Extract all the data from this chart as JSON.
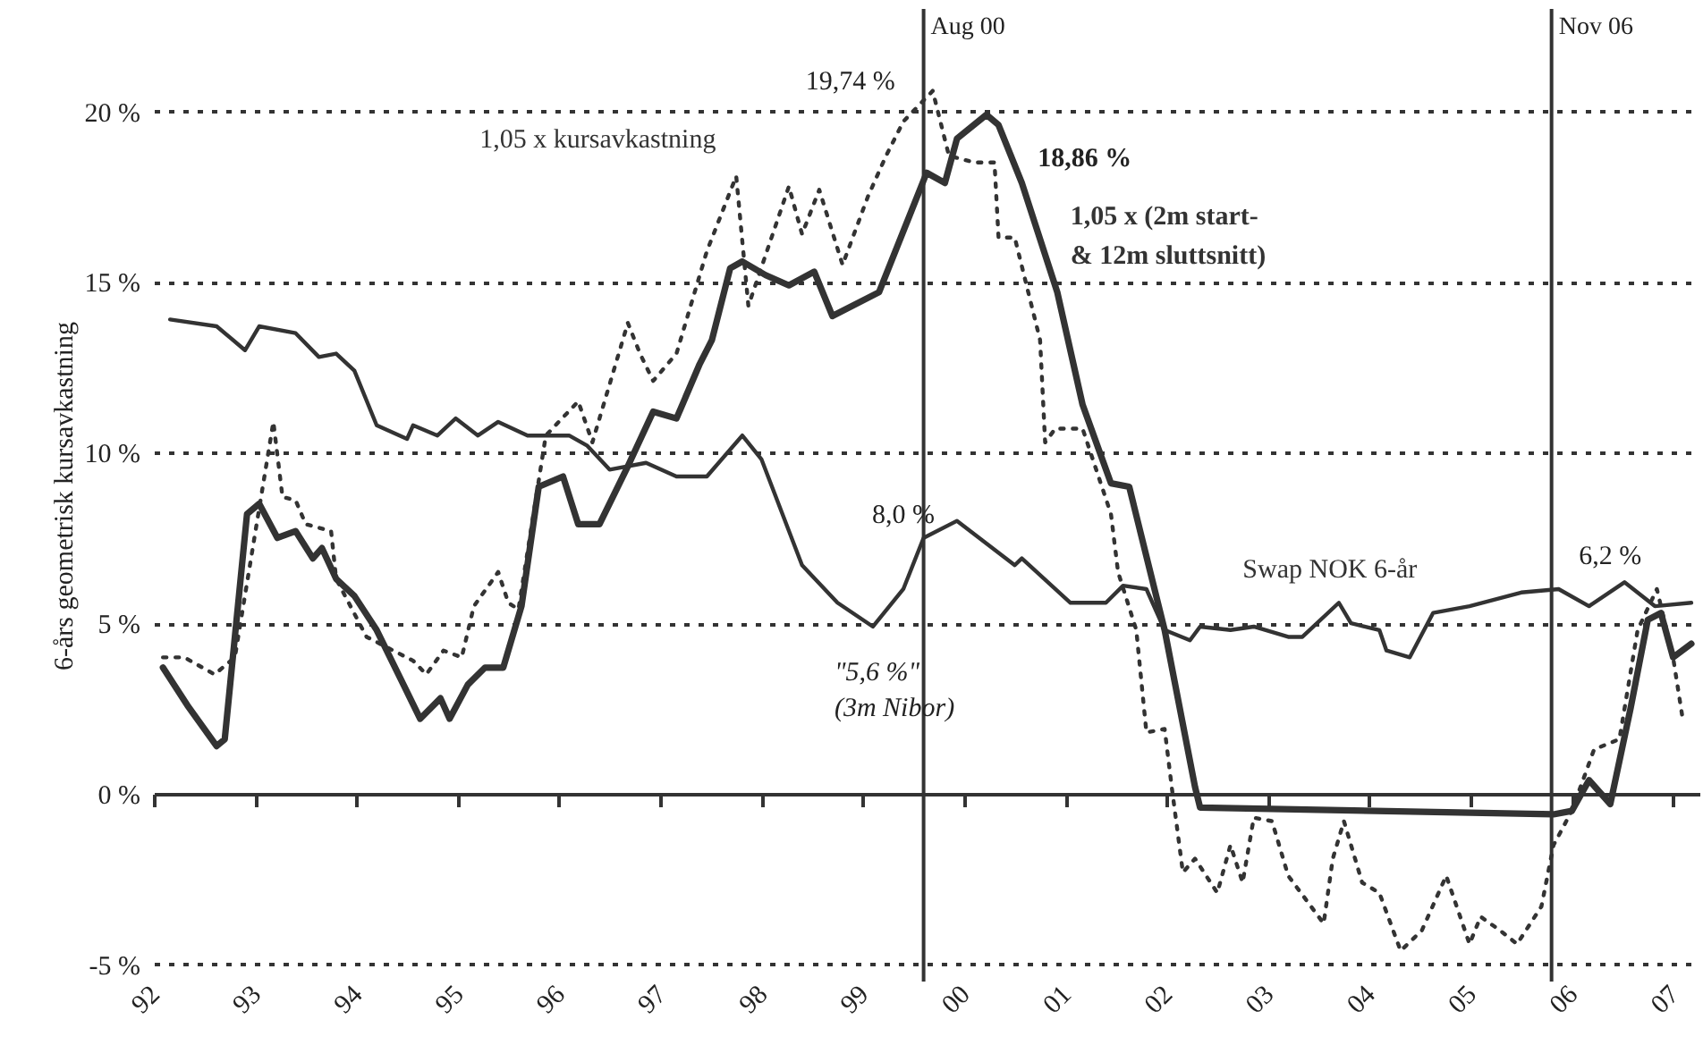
{
  "chart_data": {
    "type": "line",
    "ylabel": "6-års geometrisk kursavkastning",
    "xlim": [
      1992,
      2007.26
    ],
    "ylim": [
      -5.5,
      23
    ],
    "xticks": [
      {
        "value": 1992,
        "label": "92"
      },
      {
        "value": 1993,
        "label": "93"
      },
      {
        "value": 1994,
        "label": "94"
      },
      {
        "value": 1995,
        "label": "95"
      },
      {
        "value": 1996,
        "label": "96"
      },
      {
        "value": 1997,
        "label": "97"
      },
      {
        "value": 1998,
        "label": "98"
      },
      {
        "value": 1999,
        "label": "99"
      },
      {
        "value": 2000,
        "label": "00"
      },
      {
        "value": 2001,
        "label": "01"
      },
      {
        "value": 2002,
        "label": "02"
      },
      {
        "value": 2003,
        "label": "03"
      },
      {
        "value": 2004,
        "label": "04"
      },
      {
        "value": 2005,
        "label": "05"
      },
      {
        "value": 2006,
        "label": "06"
      },
      {
        "value": 2007,
        "label": "07"
      }
    ],
    "yticks": [
      {
        "value": -5,
        "label": "-5 %"
      },
      {
        "value": 0,
        "label": "0 %"
      },
      {
        "value": 5,
        "label": "5 %"
      },
      {
        "value": 10,
        "label": "10 %"
      },
      {
        "value": 15,
        "label": "15 %"
      },
      {
        "value": 20,
        "label": "20 %"
      }
    ],
    "grid": "y",
    "marker": "none",
    "series": [
      {
        "name": "1,05 x kursavkastning",
        "color": "#333333",
        "line_style": "dotted",
        "x": [
          1992.09,
          1992.3,
          1992.6,
          1992.8,
          1993.18,
          1993.27,
          1993.4,
          1993.5,
          1993.75,
          1993.8,
          1994.1,
          1994.56,
          1994.69,
          1994.86,
          1995.04,
          1995.16,
          1995.4,
          1995.5,
          1995.6,
          1995.87,
          1996.19,
          1996.33,
          1996.68,
          1996.8,
          1996.93,
          1997.16,
          1997.46,
          1997.75,
          1997.87,
          1998.27,
          1998.4,
          1998.57,
          1998.8,
          1999.05,
          1999.23,
          1999.4,
          1999.69,
          1999.85,
          2000.1,
          2000.3,
          2000.34,
          2000.5,
          2000.75,
          2000.8,
          2000.9,
          2001.17,
          2001.45,
          2001.52,
          2001.7,
          2001.8,
          2001.98,
          2002.05,
          2002.16,
          2002.28,
          2002.5,
          2002.63,
          2002.75,
          2002.86,
          2003.04,
          2003.2,
          2003.55,
          2003.64,
          2003.75,
          2003.93,
          2004.1,
          2004.31,
          2004.52,
          2004.76,
          2004.99,
          2005.1,
          2005.29,
          2005.46,
          2005.7,
          2005.82,
          2006.0,
          2006.22,
          2006.47,
          2006.65,
          2006.84,
          2007.0,
          2007.1
        ],
        "values": [
          4.0,
          4.0,
          3.5,
          4.0,
          10.9,
          8.7,
          8.6,
          7.9,
          7.7,
          6.3,
          4.6,
          3.9,
          3.5,
          4.2,
          4.0,
          5.5,
          6.5,
          5.6,
          5.4,
          10.5,
          11.5,
          10.3,
          13.8,
          12.9,
          12.1,
          12.9,
          15.9,
          18.1,
          14.3,
          17.8,
          16.4,
          17.7,
          15.5,
          17.5,
          18.7,
          19.7,
          20.6,
          18.7,
          18.5,
          18.5,
          16.3,
          16.3,
          13.3,
          10.3,
          10.7,
          10.7,
          8.2,
          6.5,
          4.8,
          1.8,
          1.9,
          0.2,
          -2.3,
          -1.9,
          -2.9,
          -1.5,
          -2.6,
          -0.7,
          -0.8,
          -2.4,
          -3.8,
          -1.9,
          -0.8,
          -2.6,
          -2.9,
          -4.6,
          -4.0,
          -2.4,
          -4.4,
          -3.6,
          -4.0,
          -4.4,
          -3.3,
          -1.5,
          -0.5,
          1.3,
          1.6,
          4.8,
          6.0,
          4.0,
          2.1
        ]
      },
      {
        "name": "1,05 x (2m start- & 12m sluttsnitt)",
        "color": "#333333",
        "line_style": "solid",
        "x": [
          1992.09,
          1992.33,
          1992.62,
          1992.7,
          1992.92,
          1993.04,
          1993.22,
          1993.4,
          1993.57,
          1993.66,
          1993.8,
          1993.98,
          1994.2,
          1994.63,
          1994.83,
          1994.92,
          1995.1,
          1995.27,
          1995.45,
          1995.63,
          1995.8,
          1996.04,
          1996.19,
          1996.4,
          1996.68,
          1996.93,
          1997.16,
          1997.39,
          1997.51,
          1997.69,
          1997.81,
          1998.04,
          1998.27,
          1998.52,
          1998.7,
          1999.16,
          1999.63,
          1999.81,
          1999.93,
          2000.22,
          2000.34,
          2000.57,
          2000.92,
          2001.17,
          2001.45,
          2001.63,
          2001.98,
          2002.28,
          2002.33,
          2005.82,
          2006.0,
          2006.17,
          2006.38,
          2006.58,
          2006.75,
          2006.88,
          2007.0,
          2007.18
        ],
        "values": [
          3.7,
          2.6,
          1.4,
          1.6,
          8.2,
          8.5,
          7.5,
          7.7,
          6.9,
          7.2,
          6.3,
          5.8,
          4.8,
          2.2,
          2.8,
          2.2,
          3.2,
          3.7,
          3.7,
          5.5,
          9.0,
          9.3,
          7.9,
          7.9,
          9.6,
          11.2,
          11.0,
          12.6,
          13.3,
          15.4,
          15.6,
          15.2,
          14.9,
          15.3,
          14.0,
          14.7,
          18.2,
          17.9,
          19.2,
          19.9,
          19.6,
          17.9,
          14.7,
          11.4,
          9.1,
          9.0,
          4.8,
          0.2,
          -0.4,
          -0.6,
          -0.5,
          0.4,
          -0.3,
          2.5,
          5.1,
          5.3,
          4.0,
          4.4
        ]
      },
      {
        "name": "Swap NOK 6-år",
        "color": "#333333",
        "line_style": "solid",
        "x": [
          1992.16,
          1992.62,
          1992.9,
          1993.04,
          1993.4,
          1993.63,
          1993.8,
          1993.98,
          1994.2,
          1994.5,
          1994.56,
          1994.8,
          1994.98,
          1995.2,
          1995.4,
          1995.69,
          1996.1,
          1996.28,
          1996.5,
          1996.86,
          1997.16,
          1997.46,
          1997.81,
          1998.0,
          1998.4,
          1998.75,
          1999.1,
          1999.4,
          1999.6,
          1999.93,
          2000.5,
          2000.57,
          2001.05,
          2001.4,
          2001.57,
          2001.8,
          2001.98,
          2002.23,
          2002.33,
          2002.63,
          2002.86,
          2003.2,
          2003.34,
          2003.7,
          2003.82,
          2004.1,
          2004.17,
          2004.4,
          2004.63,
          2004.99,
          2005.5,
          2005.87,
          2006.17,
          2006.52,
          2006.82,
          2007.18
        ],
        "values": [
          13.9,
          13.7,
          13.0,
          13.7,
          13.5,
          12.8,
          12.9,
          12.4,
          10.8,
          10.4,
          10.8,
          10.5,
          11.0,
          10.5,
          10.9,
          10.5,
          10.5,
          10.2,
          9.5,
          9.7,
          9.3,
          9.3,
          10.5,
          9.8,
          6.7,
          5.6,
          4.9,
          6.0,
          7.5,
          8.0,
          6.7,
          6.9,
          5.6,
          5.6,
          6.1,
          6.0,
          4.8,
          4.5,
          4.9,
          4.8,
          4.9,
          4.6,
          4.6,
          5.6,
          5.0,
          4.8,
          4.2,
          4.0,
          5.3,
          5.5,
          5.9,
          6.0,
          5.5,
          6.2,
          5.5,
          5.6
        ]
      }
    ],
    "ref_lines": [
      {
        "axis": "x",
        "value": 1999.6,
        "label": "Aug 00"
      },
      {
        "axis": "x",
        "value": 2005.8,
        "label": "Nov 06"
      }
    ],
    "annotations": [
      {
        "text": "19,74 %",
        "x": 1999.69,
        "y": 19.74
      },
      {
        "text": "18,86 %",
        "x": 2000.45,
        "y": 18.86
      },
      {
        "text": "8,0 %",
        "x": 1999.93,
        "y": 8.0
      },
      {
        "text": "6,2 %",
        "x": 2006.52,
        "y": 6.2
      },
      "\"5,6 %\" (3m Nibor)"
    ]
  }
}
